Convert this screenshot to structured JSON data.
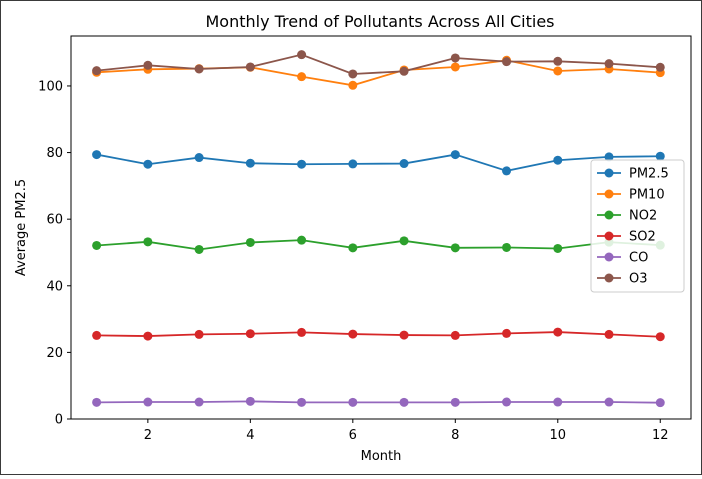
{
  "chart_data": {
    "type": "line",
    "title": "Monthly Trend of Pollutants Across All Cities",
    "xlabel": "Month",
    "ylabel": "Average PM2.5",
    "xlim": [
      0.5,
      12.6
    ],
    "ylim": [
      0,
      115
    ],
    "x": [
      1,
      2,
      3,
      4,
      5,
      6,
      7,
      8,
      9,
      10,
      11,
      12
    ],
    "xticks": [
      2,
      4,
      6,
      8,
      10,
      12
    ],
    "yticks": [
      0,
      20,
      40,
      60,
      80,
      100
    ],
    "grid": false,
    "legend_position": "center-right",
    "series": [
      {
        "name": "PM2.5",
        "color": "#1f77b4",
        "values": [
          79.4,
          76.5,
          78.5,
          76.8,
          76.5,
          76.6,
          76.7,
          79.4,
          74.5,
          77.7,
          78.7,
          78.9
        ]
      },
      {
        "name": "PM10",
        "color": "#ff7f0e",
        "values": [
          104.1,
          105.0,
          105.2,
          105.6,
          102.8,
          100.2,
          104.8,
          105.7,
          107.7,
          104.5,
          105.1,
          104.0
        ]
      },
      {
        "name": "NO2",
        "color": "#2ca02c",
        "values": [
          52.1,
          53.2,
          50.9,
          53.0,
          53.7,
          51.4,
          53.5,
          51.4,
          51.5,
          51.2,
          53.1,
          52.2
        ]
      },
      {
        "name": "SO2",
        "color": "#d62728",
        "values": [
          25.1,
          24.9,
          25.4,
          25.6,
          26.0,
          25.5,
          25.2,
          25.1,
          25.7,
          26.1,
          25.4,
          24.7
        ]
      },
      {
        "name": "CO",
        "color": "#9467bd",
        "values": [
          5.0,
          5.1,
          5.1,
          5.3,
          5.0,
          5.0,
          5.0,
          5.0,
          5.1,
          5.1,
          5.1,
          4.9
        ]
      },
      {
        "name": "O3",
        "color": "#8c564b",
        "values": [
          104.6,
          106.2,
          105.1,
          105.7,
          109.4,
          103.6,
          104.4,
          108.4,
          107.3,
          107.4,
          106.7,
          105.6
        ]
      }
    ]
  }
}
